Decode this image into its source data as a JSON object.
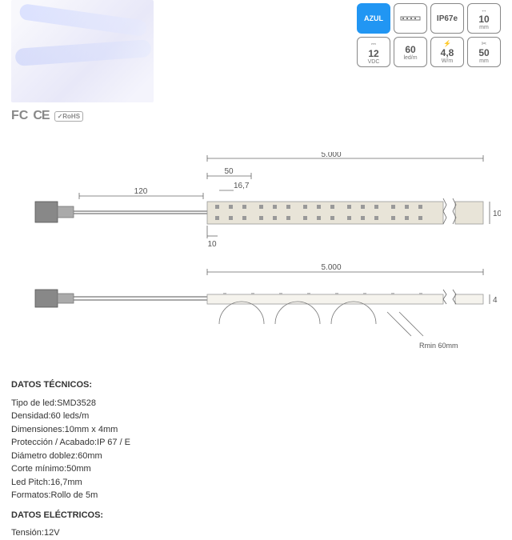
{
  "product_image": {
    "bg_color": "#eeeefa"
  },
  "certifications": [
    "FC",
    "CE",
    "RoHS"
  ],
  "badges": {
    "row1": [
      {
        "type": "color",
        "label": "AZUL",
        "bg": "#2196f3"
      },
      {
        "type": "icon",
        "icon": "led-strip",
        "main": "",
        "sub": ""
      },
      {
        "type": "text",
        "main": "IP67e",
        "sub": ""
      },
      {
        "type": "text",
        "main": "10",
        "sub": "mm",
        "icon": "width"
      }
    ],
    "row2": [
      {
        "type": "text",
        "main": "12",
        "sub": "VDC",
        "icon": "volt"
      },
      {
        "type": "text",
        "main": "60",
        "sub": "led/m"
      },
      {
        "type": "text",
        "main": "4,8",
        "sub": "W/m",
        "icon": "power"
      },
      {
        "type": "text",
        "main": "50",
        "sub": "mm",
        "icon": "cut"
      }
    ]
  },
  "diagram": {
    "top": {
      "total_length": "5.000",
      "connector_len": "120",
      "segment": "50",
      "pitch": "16,7",
      "lead": "10",
      "width": "10"
    },
    "bottom": {
      "total_length": "5.000",
      "height": "4",
      "bend_radius": "Rmin 60mm"
    },
    "colors": {
      "line": "#666",
      "strip_fill": "#e8e4d8",
      "strip_border": "#999",
      "connector": "#888"
    }
  },
  "specs": {
    "tech_header": "DATOS TÉCNICOS:",
    "tech": [
      {
        "label": "Tipo de led",
        "value": "SMD3528"
      },
      {
        "label": "Densidad",
        "value": "60 leds/m"
      },
      {
        "label": "Dimensiones",
        "value": "10mm x 4mm"
      },
      {
        "label": "Protección / Acabado",
        "value": "IP 67 / E"
      },
      {
        "label": "Diámetro doblez",
        "value": "60mm"
      },
      {
        "label": "Corte mínimo",
        "value": "50mm"
      },
      {
        "label": "Led Pitch",
        "value": "16,7mm"
      },
      {
        "label": "Formatos",
        "value": "Rollo de 5m"
      }
    ],
    "elec_header": "DATOS ELÉCTRICOS:",
    "elec": [
      {
        "label": "Tensión",
        "value": "12V"
      }
    ]
  }
}
